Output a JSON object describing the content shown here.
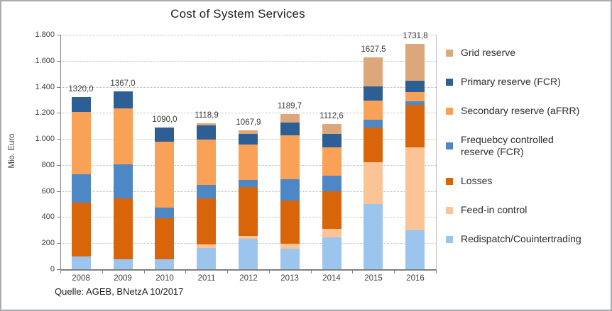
{
  "source": "Quelle: AGEB, BNetzA 10/2017",
  "chart_data": {
    "type": "bar",
    "subtype": "stacked-vertical",
    "title": "Cost of System Services",
    "ylabel": "Mio. Euro",
    "ylim": [
      0,
      1800
    ],
    "ytick_step": 200,
    "ytick_labels": [
      "0",
      "200",
      "400",
      "600",
      "800",
      "1.000",
      "1.200",
      "1.400",
      "1.600",
      "1.800"
    ],
    "grid": "horizontal-dotted",
    "legend_position": "right",
    "categories": [
      "2008",
      "2009",
      "2010",
      "2011",
      "2012",
      "2013",
      "2014",
      "2015",
      "2016"
    ],
    "totals": [
      1320.0,
      1367.0,
      1090.0,
      1118.9,
      1067.9,
      1189.7,
      1112.6,
      1627.5,
      1731.8
    ],
    "total_labels": [
      "1320,0",
      "1367,0",
      "1090,0",
      "1118,9",
      "1067,9",
      "1189,7",
      "1112,6",
      "1627,5",
      "1731,8"
    ],
    "series": [
      {
        "name": "Redispatch/Couintertrading",
        "color": "#9CC5EE",
        "values": [
          100,
          75,
          75,
          165,
          235,
          155,
          245,
          500,
          300
        ]
      },
      {
        "name": "Feed-in control",
        "color": "#FAC497",
        "values": [
          0,
          0,
          0,
          25,
          20,
          40,
          65,
          320,
          635
        ]
      },
      {
        "name": "Losses",
        "color": "#D9650B",
        "values": [
          410,
          470,
          315,
          355,
          375,
          330,
          290,
          270,
          325
        ]
      },
      {
        "name": "Frequebcy controlled reserve (FCR)",
        "color": "#4E87C6",
        "values": [
          220,
          260,
          85,
          100,
          55,
          165,
          120,
          55,
          27
        ]
      },
      {
        "name": "Secondary reserve (aFRR)",
        "color": "#F9A157",
        "values": [
          475,
          430,
          505,
          350,
          270,
          340,
          215,
          150,
          75
        ]
      },
      {
        "name": "Primary reserve (FCR)",
        "color": "#2D5F94",
        "values": [
          115,
          132,
          110,
          110,
          85,
          95,
          105,
          110,
          85
        ]
      },
      {
        "name": "Grid reserve",
        "color": "#DCA77B",
        "values": [
          0,
          0,
          0,
          13.9,
          27.9,
          64.7,
          72.6,
          222.5,
          284.8
        ]
      }
    ],
    "legend": [
      {
        "label": "Grid reserve",
        "color": "#DCA77B"
      },
      {
        "label": "Primary reserve (FCR)",
        "color": "#2D5F94"
      },
      {
        "label": "Secondary reserve (aFRR)",
        "color": "#F9A157"
      },
      {
        "label": "Frequebcy controlled\nreserve (FCR)",
        "color": "#4E87C6"
      },
      {
        "label": "Losses",
        "color": "#D9650B"
      },
      {
        "label": "Feed-in control",
        "color": "#FAC497"
      },
      {
        "label": "Redispatch/Couintertrading",
        "color": "#9CC5EE"
      }
    ]
  }
}
